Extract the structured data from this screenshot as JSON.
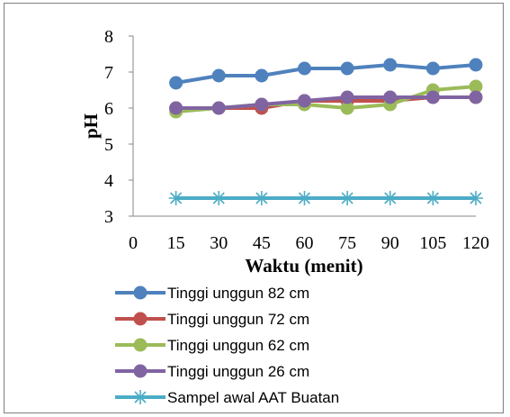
{
  "chart_data": {
    "type": "line",
    "title": "",
    "xlabel": "Waktu (menit)",
    "ylabel": "pH",
    "x_tick_labels": [
      "0",
      "15",
      "30",
      "45",
      "60",
      "75",
      "90",
      "105",
      "120"
    ],
    "x": [
      15,
      30,
      45,
      60,
      75,
      90,
      105,
      120
    ],
    "y_tick_labels": [
      "3",
      "4",
      "5",
      "6",
      "7",
      "8"
    ],
    "ylim": [
      3,
      8
    ],
    "grid": false,
    "legend_position": "bottom",
    "series": [
      {
        "name": "Tinggi unggun 82 cm",
        "color": "#4f81bd",
        "marker": "circle",
        "values": [
          6.7,
          6.9,
          6.9,
          7.1,
          7.1,
          7.2,
          7.1,
          7.2
        ]
      },
      {
        "name": "Tinggi unggun 72 cm",
        "color": "#c0504d",
        "marker": "circle",
        "values": [
          6.0,
          6.0,
          6.0,
          6.2,
          6.2,
          6.2,
          6.3,
          6.3
        ]
      },
      {
        "name": "Tinggi unggun 62 cm",
        "color": "#9bbb59",
        "marker": "circle",
        "values": [
          5.9,
          6.0,
          6.1,
          6.1,
          6.0,
          6.1,
          6.5,
          6.6
        ]
      },
      {
        "name": "Tinggi unggun 26 cm",
        "color": "#8064a2",
        "marker": "circle",
        "values": [
          6.0,
          6.0,
          6.1,
          6.2,
          6.3,
          6.3,
          6.3,
          6.3
        ]
      },
      {
        "name": "Sampel awal AAT Buatan",
        "color": "#4bacc6",
        "marker": "star",
        "values": [
          3.5,
          3.5,
          3.5,
          3.5,
          3.5,
          3.5,
          3.5,
          3.5
        ]
      }
    ]
  }
}
